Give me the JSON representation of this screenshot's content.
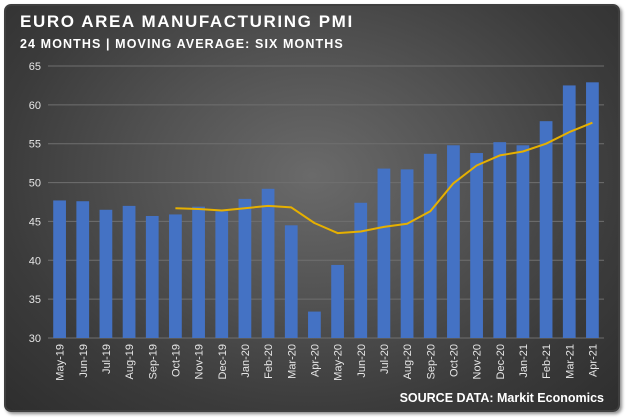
{
  "title": "EURO AREA MANUFACTURING PMI",
  "subtitle": "24 MONTHS | MOVING AVERAGE: SIX MONTHS",
  "source": "SOURCE DATA: Markit Economics",
  "colors": {
    "bar": "#4472c4",
    "moving_average": "#e6b000",
    "gridline": "#6f6f6f",
    "text": "#ffffff"
  },
  "chart_data": {
    "type": "bar",
    "categories": [
      "May-19",
      "Jun-19",
      "Jul-19",
      "Aug-19",
      "Sep-19",
      "Oct-19",
      "Nov-19",
      "Dec-19",
      "Jan-20",
      "Feb-20",
      "Mar-20",
      "Apr-20",
      "May-20",
      "Jun-20",
      "Jul-20",
      "Aug-20",
      "Sep-20",
      "Oct-20",
      "Nov-20",
      "Dec-20",
      "Jan-21",
      "Feb-21",
      "Mar-21",
      "Apr-21"
    ],
    "series": [
      {
        "type": "bar",
        "values": [
          47.7,
          47.6,
          46.5,
          47.0,
          45.7,
          45.9,
          46.9,
          46.3,
          47.9,
          49.2,
          44.5,
          33.4,
          39.4,
          47.4,
          51.8,
          51.7,
          53.7,
          54.8,
          53.8,
          55.2,
          54.8,
          57.9,
          62.5,
          62.9
        ]
      },
      {
        "type": "line",
        "values": [
          null,
          null,
          null,
          null,
          null,
          46.7,
          46.6,
          46.4,
          46.7,
          47.0,
          46.8,
          44.8,
          43.5,
          43.7,
          44.3,
          44.7,
          46.3,
          49.9,
          52.2,
          53.5,
          54.0,
          55.0,
          56.5,
          57.7
        ]
      }
    ],
    "ylim": [
      30,
      65
    ],
    "yticks": [
      30,
      35,
      40,
      45,
      50,
      55,
      60,
      65
    ],
    "grid": true,
    "xlabel": "",
    "ylabel": ""
  }
}
